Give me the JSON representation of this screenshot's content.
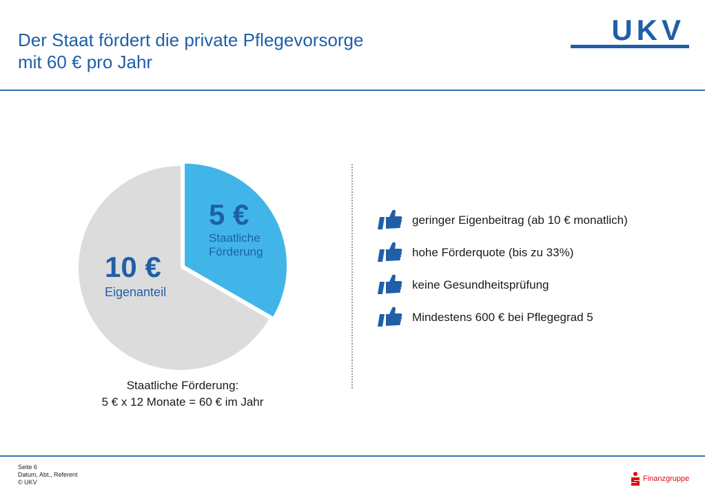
{
  "header": {
    "title_line1": "Der Staat fördert die private Pflegevorsorge",
    "title_line2": "mit 60 € pro Jahr",
    "logo_text": "UKV"
  },
  "colors": {
    "brand_blue": "#1f5fa8",
    "pie_blue": "#41b5e8",
    "pie_gray": "#dcdcdc",
    "sparkasse_red": "#e30613"
  },
  "chart_data": {
    "type": "pie",
    "slices": [
      {
        "label": "Staatliche Förderung",
        "value": 5,
        "value_text": "5 €",
        "label_line1": "Staatliche",
        "label_line2": "Förderung",
        "color": "#41b5e8",
        "exploded": true
      },
      {
        "label": "Eigenanteil",
        "value": 10,
        "value_text": "10 €",
        "color": "#dcdcdc",
        "exploded": false
      }
    ]
  },
  "caption": {
    "line1": "Staatliche Förderung:",
    "line2": "5 € x 12 Monate = 60 € im Jahr"
  },
  "benefits": [
    {
      "icon": "thumbs-up-icon",
      "text": "geringer Eigenbeitrag (ab 10 € monatlich)"
    },
    {
      "icon": "thumbs-up-icon",
      "text": "hohe Förderquote (bis zu 33%)"
    },
    {
      "icon": "thumbs-up-icon",
      "text": "keine Gesundheitsprüfung"
    },
    {
      "icon": "thumbs-up-icon",
      "text": "Mindestens 600 € bei Pflegegrad 5"
    }
  ],
  "footer": {
    "page": "Seite 6",
    "meta": "Datum, Abt., Referent",
    "copyright": "© UKV",
    "partner_logo_text": "Finanzgruppe"
  }
}
